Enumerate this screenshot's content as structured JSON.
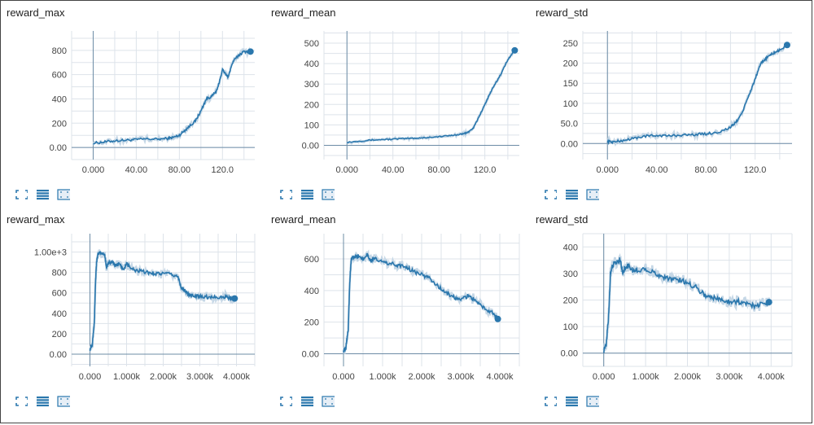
{
  "colors": {
    "line": "#2a77ad",
    "band": "#c5d7e6",
    "grid": "#dde3ea",
    "axis": "#6d8ca6",
    "tool": "#2a77ad"
  },
  "toolbar": {
    "icons": [
      "expand-icon",
      "toggle-y-log-icon",
      "fit-domain-icon"
    ]
  },
  "chart_data": [
    {
      "type": "line",
      "title": "reward_max",
      "xlim": [
        -20,
        150
      ],
      "ylim": [
        -100,
        960
      ],
      "xticks": [
        "0.000",
        "40.00",
        "80.00",
        "120.0"
      ],
      "xtick_values": [
        0,
        40,
        80,
        120
      ],
      "yticks": [
        "0.00",
        "200",
        "400",
        "600",
        "800"
      ],
      "ytick_values": [
        0,
        200,
        400,
        600,
        800
      ],
      "series": [
        {
          "x": [
            0,
            10,
            20,
            30,
            40,
            50,
            60,
            70,
            75,
            80,
            85,
            90,
            95,
            100,
            105,
            110,
            115,
            120,
            125,
            130,
            135,
            140,
            146
          ],
          "y": [
            35,
            45,
            55,
            60,
            65,
            70,
            68,
            75,
            85,
            100,
            140,
            180,
            220,
            300,
            400,
            420,
            470,
            640,
            580,
            710,
            760,
            790,
            790
          ]
        }
      ],
      "noise": 10
    },
    {
      "type": "line",
      "title": "reward_mean",
      "xlim": [
        -20,
        150
      ],
      "ylim": [
        -70,
        560
      ],
      "xticks": [
        "0.000",
        "40.00",
        "80.00",
        "120.0"
      ],
      "xtick_values": [
        0,
        40,
        80,
        120
      ],
      "yticks": [
        "0.00",
        "100",
        "200",
        "300",
        "400",
        "500"
      ],
      "ytick_values": [
        0,
        100,
        200,
        300,
        400,
        500
      ],
      "series": [
        {
          "x": [
            0,
            10,
            20,
            30,
            40,
            50,
            60,
            70,
            80,
            90,
            100,
            105,
            110,
            115,
            120,
            125,
            130,
            135,
            140,
            146
          ],
          "y": [
            15,
            20,
            25,
            28,
            30,
            33,
            35,
            38,
            42,
            48,
            55,
            62,
            85,
            140,
            200,
            260,
            310,
            360,
            420,
            465
          ]
        }
      ],
      "noise": 3
    },
    {
      "type": "line",
      "title": "reward_std",
      "xlim": [
        -20,
        150
      ],
      "ylim": [
        -40,
        280
      ],
      "xticks": [
        "0.000",
        "40.00",
        "80.00",
        "120.0"
      ],
      "xtick_values": [
        0,
        40,
        80,
        120
      ],
      "yticks": [
        "0.00",
        "50.0",
        "100",
        "150",
        "200",
        "250"
      ],
      "ytick_values": [
        0,
        50,
        100,
        150,
        200,
        250
      ],
      "series": [
        {
          "x": [
            0,
            5,
            10,
            20,
            30,
            40,
            50,
            60,
            70,
            80,
            90,
            100,
            105,
            110,
            115,
            120,
            125,
            130,
            135,
            140,
            146
          ],
          "y": [
            5,
            4,
            6,
            12,
            18,
            20,
            19,
            21,
            22,
            24,
            28,
            40,
            55,
            80,
            120,
            160,
            200,
            215,
            225,
            232,
            245
          ]
        }
      ],
      "noise": 3
    },
    {
      "type": "line",
      "title": "reward_max",
      "xlim": [
        -500,
        4500
      ],
      "ylim": [
        -120,
        1180
      ],
      "xticks": [
        "0.000",
        "1.000k",
        "2.000k",
        "3.000k",
        "4.000k"
      ],
      "xtick_values": [
        0,
        1000,
        2000,
        3000,
        4000
      ],
      "yticks": [
        "0.00",
        "200",
        "400",
        "600",
        "800",
        "1.00e+3"
      ],
      "ytick_values": [
        0,
        200,
        400,
        600,
        800,
        1000
      ],
      "series": [
        {
          "x": [
            0,
            60,
            120,
            150,
            180,
            220,
            300,
            400,
            450,
            500,
            600,
            700,
            800,
            900,
            1000,
            1200,
            1400,
            1600,
            1800,
            2000,
            2200,
            2400,
            2500,
            2600,
            2700,
            2800,
            3000,
            3200,
            3400,
            3600,
            3800,
            3950
          ],
          "y": [
            50,
            80,
            300,
            700,
            900,
            980,
            990,
            975,
            850,
            900,
            900,
            870,
            880,
            830,
            880,
            820,
            810,
            800,
            790,
            790,
            780,
            760,
            650,
            620,
            580,
            570,
            570,
            560,
            560,
            560,
            555,
            545
          ]
        }
      ],
      "noise": 18
    },
    {
      "type": "line",
      "title": "reward_mean",
      "xlim": [
        -500,
        4500
      ],
      "ylim": [
        -80,
        760
      ],
      "xticks": [
        "0.000",
        "1.000k",
        "2.000k",
        "3.000k",
        "4.000k"
      ],
      "xtick_values": [
        0,
        1000,
        2000,
        3000,
        4000
      ],
      "yticks": [
        "0.00",
        "200",
        "400",
        "600"
      ],
      "ytick_values": [
        0,
        200,
        400,
        600
      ],
      "series": [
        {
          "x": [
            0,
            60,
            120,
            160,
            200,
            300,
            400,
            500,
            600,
            700,
            800,
            1000,
            1200,
            1400,
            1600,
            1800,
            2000,
            2200,
            2400,
            2600,
            2800,
            3000,
            3200,
            3400,
            3600,
            3800,
            3950
          ],
          "y": [
            20,
            40,
            150,
            450,
            600,
            610,
            620,
            600,
            630,
            590,
            600,
            580,
            570,
            560,
            550,
            520,
            500,
            480,
            430,
            390,
            360,
            340,
            370,
            330,
            290,
            260,
            220
          ]
        }
      ],
      "noise": 12
    },
    {
      "type": "line",
      "title": "reward_std",
      "xlim": [
        -500,
        4500
      ],
      "ylim": [
        -50,
        450
      ],
      "xticks": [
        "0.000",
        "1.000k",
        "2.000k",
        "3.000k",
        "4.000k"
      ],
      "xtick_values": [
        0,
        1000,
        2000,
        3000,
        4000
      ],
      "yticks": [
        "0.00",
        "100",
        "200",
        "300",
        "400"
      ],
      "ytick_values": [
        0,
        100,
        200,
        300,
        400
      ],
      "series": [
        {
          "x": [
            0,
            60,
            120,
            160,
            200,
            300,
            400,
            450,
            500,
            600,
            700,
            800,
            1000,
            1200,
            1400,
            1600,
            1800,
            2000,
            2200,
            2400,
            2600,
            2800,
            3000,
            3200,
            3400,
            3600,
            3800,
            3950
          ],
          "y": [
            10,
            30,
            150,
            300,
            330,
            340,
            355,
            300,
            320,
            330,
            310,
            310,
            320,
            300,
            290,
            280,
            275,
            265,
            250,
            220,
            210,
            200,
            195,
            195,
            185,
            180,
            185,
            192
          ]
        }
      ],
      "noise": 10
    }
  ]
}
